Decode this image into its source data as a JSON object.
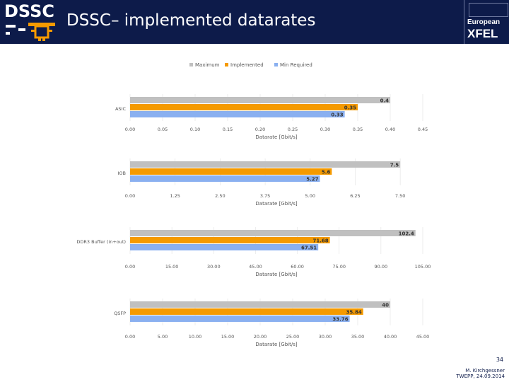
{
  "header": {
    "logo_left": "DSSC",
    "title": "DSSC– implemented datarates",
    "logo_right_line1": "European",
    "logo_right_line2": "XFEL"
  },
  "legend": [
    "Maximum",
    "Implemented",
    "Min Required"
  ],
  "colors": {
    "maximum": "#c0c0c0",
    "implemented": "#f59a00",
    "min_required": "#8ab0f0",
    "header": "#0d1b4a"
  },
  "chart_data": [
    {
      "type": "bar",
      "category": "ASIC",
      "xlabel": "Datarate [Gbit/s]",
      "xlim": [
        0,
        0.45
      ],
      "ticks": [
        "0.00",
        "0.05",
        "0.10",
        "0.15",
        "0.20",
        "0.25",
        "0.30",
        "0.35",
        "0.40",
        "0.45"
      ],
      "series": [
        {
          "name": "Maximum",
          "value": 0.4,
          "label": "0.4"
        },
        {
          "name": "Implemented",
          "value": 0.35,
          "label": "0.35"
        },
        {
          "name": "Min Required",
          "value": 0.33,
          "label": "0.33"
        }
      ]
    },
    {
      "type": "bar",
      "category": "IOB",
      "xlabel": "Datarate [Gbit/s]",
      "xlim": [
        0,
        8.125
      ],
      "ticks": [
        "0.00",
        "1.25",
        "2.50",
        "3.75",
        "5.00",
        "6.25",
        "7.50"
      ],
      "series": [
        {
          "name": "Maximum",
          "value": 7.5,
          "label": "7.5"
        },
        {
          "name": "Implemented",
          "value": 5.6,
          "label": "5.6"
        },
        {
          "name": "Min Required",
          "value": 5.27,
          "label": "5.27"
        }
      ]
    },
    {
      "type": "bar",
      "category": "DDR3 Buffer (in+out)",
      "xlabel": "Datarate [Gbit/s]",
      "xlim": [
        0,
        105
      ],
      "ticks": [
        "0.00",
        "15.00",
        "30.00",
        "45.00",
        "60.00",
        "75.00",
        "90.00",
        "105.00"
      ],
      "series": [
        {
          "name": "Maximum",
          "value": 102.4,
          "label": "102.4"
        },
        {
          "name": "Implemented",
          "value": 71.68,
          "label": "71.68"
        },
        {
          "name": "Min Required",
          "value": 67.51,
          "label": "67.51"
        }
      ]
    },
    {
      "type": "bar",
      "category": "QSFP",
      "xlabel": "Datarate [Gbit/s]",
      "xlim": [
        0,
        45
      ],
      "ticks": [
        "0.00",
        "5.00",
        "10.00",
        "15.00",
        "20.00",
        "25.00",
        "30.00",
        "35.00",
        "40.00",
        "45.00"
      ],
      "series": [
        {
          "name": "Maximum",
          "value": 40,
          "label": "40"
        },
        {
          "name": "Implemented",
          "value": 35.84,
          "label": "35.84"
        },
        {
          "name": "Min Required",
          "value": 33.76,
          "label": "33.76"
        }
      ]
    }
  ],
  "footer": {
    "page": "34",
    "author": "M. Kirchgessner",
    "event": "TWEPP, 24.09.2014"
  }
}
